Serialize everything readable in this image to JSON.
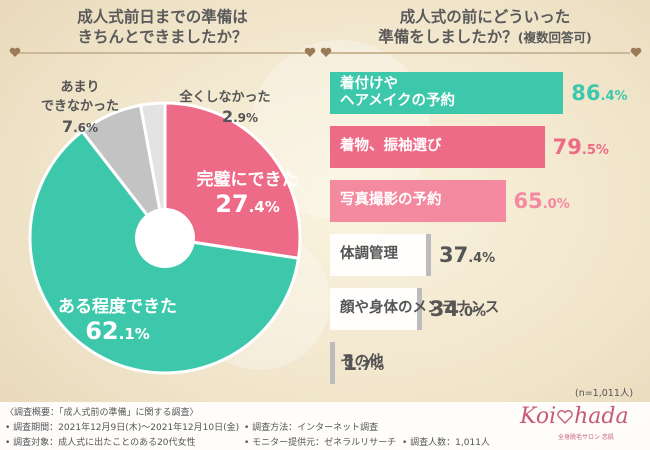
{
  "left_title": [
    "成人式前日までの準備は",
    "きちんとできましたか？"
  ],
  "right_title": [
    "成人式の前にどういった",
    "準備をしましたか？"
  ],
  "right_title_sub": "(複数回答可)",
  "chart_data": [
    {
      "type": "pie",
      "title": "成人式前日までの準備はきちんとできましたか？",
      "slices": [
        {
          "name_lines": [
            "完璧にできた"
          ],
          "value": 27.4,
          "int": "27",
          "dec": ".4%",
          "color": "#ee6b87"
        },
        {
          "name_lines": [
            "ある程度できた"
          ],
          "value": 62.1,
          "int": "62",
          "dec": ".1%",
          "color": "#3ec8ab"
        },
        {
          "name_lines": [
            "あまり",
            "できなかった"
          ],
          "value": 7.6,
          "int": "7",
          "dec": ".6%",
          "color": "#c3c3c3"
        },
        {
          "name_lines": [
            "全くしなかった"
          ],
          "value": 2.9,
          "int": "2",
          "dec": ".9%",
          "color": "#e3e3e3"
        }
      ]
    },
    {
      "type": "bar",
      "orientation": "horizontal",
      "title": "成人式の前にどういった準備をしましたか？(複数回答可)",
      "xlim": [
        0,
        100
      ],
      "bars": [
        {
          "label_lines": [
            "着付けや",
            "ヘアメイクの予約"
          ],
          "value": 86.4,
          "int": "86",
          "dec": ".4%",
          "color": "#3ec8ab",
          "style": "filled"
        },
        {
          "label_lines": [
            "着物、振袖選び"
          ],
          "value": 79.5,
          "int": "79",
          "dec": ".5%",
          "color": "#ee6b87",
          "style": "filled"
        },
        {
          "label_lines": [
            "写真撮影の予約"
          ],
          "value": 65.0,
          "int": "65",
          "dec": ".0%",
          "color": "#f48aa0",
          "style": "filled"
        },
        {
          "label_lines": [
            "体調管理"
          ],
          "value": 37.4,
          "int": "37",
          "dec": ".4%",
          "color": "#bcbcbc",
          "style": "outline"
        },
        {
          "label_lines": [
            "顔や身体のメンテナンス"
          ],
          "value": 34.0,
          "int": "34",
          "dec": ".0%",
          "color": "#bcbcbc",
          "style": "outline"
        },
        {
          "label_lines": [
            "その他"
          ],
          "value": 1.7,
          "int": "1",
          "dec": ".7%",
          "color": "#bcbcbc",
          "style": "outline"
        }
      ],
      "note": "(n=1,011人)"
    }
  ],
  "footer": {
    "l1": "〈調査概要：「成人式前の準備」に関する調査〉",
    "l2": "• 調査期間：2021年12月9日(木)〜2021年12月10日(金)",
    "l3": "• 調査対象：成人式に出たことのある20代女性",
    "m1": "• 調査方法：インターネット調査",
    "m2": "• モニター提供元：ゼネラルリサーチ",
    "r2": "• 調査人数：1,011人"
  },
  "logo": {
    "a": "Koi",
    "b": "hada",
    "sub": "全身脱毛サロン 恋肌"
  }
}
